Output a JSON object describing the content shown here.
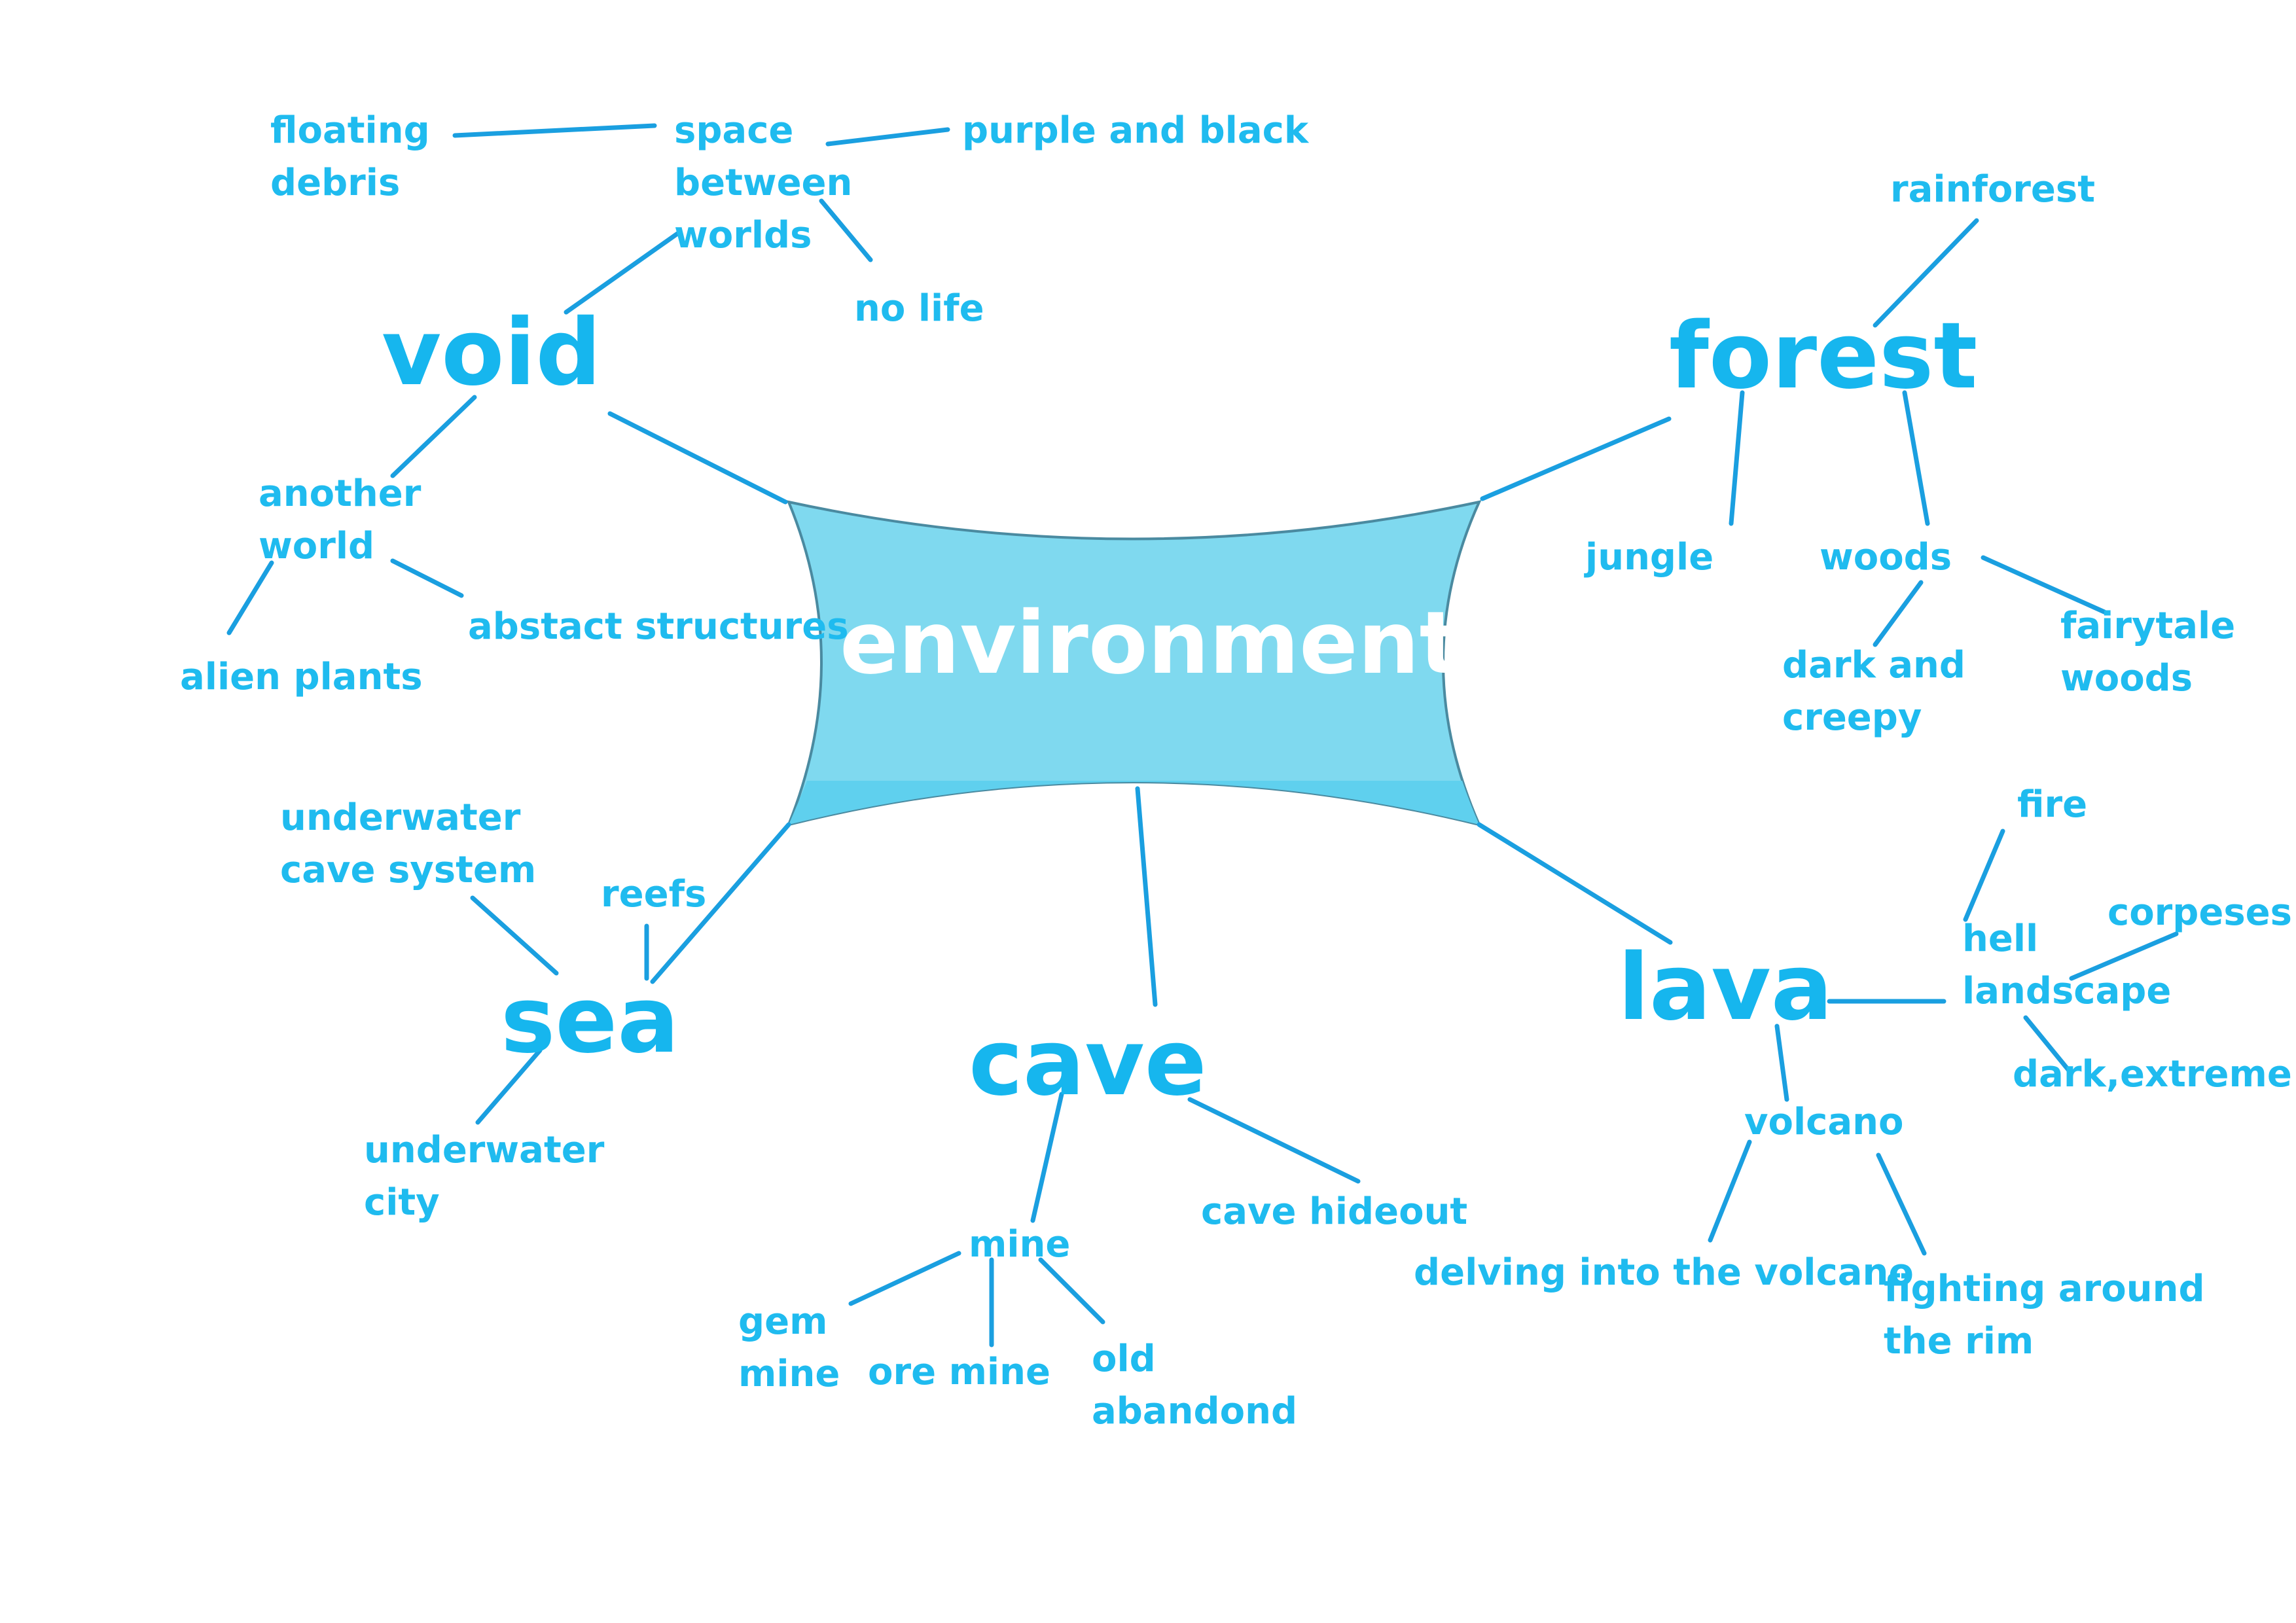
{
  "center": {
    "label": "environment"
  },
  "topics": {
    "void": "void",
    "forest": "forest",
    "sea": "sea",
    "cave": "cave",
    "lava": "lava"
  },
  "void": {
    "space_between_worlds": "space\nbetween\nworlds",
    "floating_debris": "floating\ndebris",
    "purple_and_black": "purple and black",
    "no_life": "no life",
    "another_world": "another\nworld",
    "alien_plants": "alien plants",
    "abstact_structures": "abstact structures"
  },
  "forest": {
    "rainforest": "rainforest",
    "jungle": "jungle",
    "woods": "woods",
    "dark_and_creepy": "dark and\ncreepy",
    "fairytale_woods": "fairytale\nwoods"
  },
  "sea": {
    "underwater_cave_system": "underwater\ncave system",
    "reefs": "reefs",
    "underwater_city": "underwater\ncity"
  },
  "cave": {
    "mine": "mine",
    "gem_mine": "gem\nmine",
    "ore_mine": "ore mine",
    "old_abandond": "old\nabandond",
    "cave_hideout": "cave hideout"
  },
  "lava": {
    "fire": "fire",
    "hell_landscape": "hell\nlandscape",
    "corpeses": "corpeses",
    "dark_extreme": "dark,extreme",
    "volcano": "volcano",
    "delving_into_the_volcano": "delving into the volcano",
    "fighting_around_the_rim": "fighting around\nthe rim"
  },
  "colors": {
    "text": "#1fbbef",
    "line": "#1a9fe0",
    "center_fill": "#7fd9ef",
    "center_fill_bottom": "#5fd0ee",
    "center_stroke": "#4a8aa0",
    "center_text": "#ffffff"
  }
}
